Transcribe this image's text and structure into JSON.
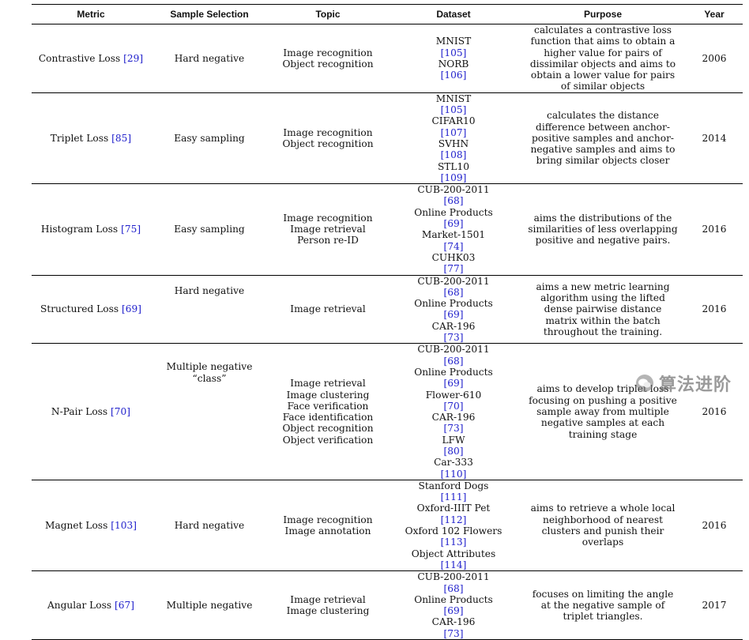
{
  "headers": [
    "Metric",
    "Sample Selection",
    "Topic",
    "Dataset",
    "Purpose",
    "Year"
  ],
  "rows": [
    {
      "metric": "Contrastive Loss",
      "metric_ref": "[29]",
      "selection": "Hard negative",
      "topics": [
        "Image recognition",
        "Object recognition"
      ],
      "datasets": [
        {
          "name": "MNIST",
          "ref": "[105]"
        },
        {
          "name": "NORB",
          "ref": "[106]"
        }
      ],
      "purpose": "calculates a contrastive loss function that aims to obtain a higher value for pairs of dissimilar objects and aims to obtain a lower value for pairs of similar objects",
      "year": "2006"
    },
    {
      "metric": "Triplet Loss",
      "metric_ref": "[85]",
      "selection": "Easy sampling",
      "topics": [
        "Image recognition",
        "Object recognition"
      ],
      "datasets": [
        {
          "name": "MNIST",
          "ref": "[105]"
        },
        {
          "name": "CIFAR10",
          "ref": "[107]"
        },
        {
          "name": "SVHN",
          "ref": "[108]"
        },
        {
          "name": "STL10",
          "ref": "[109]"
        }
      ],
      "purpose": "calculates the distance difference between anchor-positive samples and anchor-negative samples and aims to bring similar objects closer",
      "year": "2014"
    },
    {
      "metric": "Histogram Loss",
      "metric_ref": "[75]",
      "selection": "Easy sampling",
      "topics": [
        "Image recognition",
        "Image retrieval",
        "Person re-ID"
      ],
      "datasets": [
        {
          "name": "CUB-200-2011",
          "ref": "[68]"
        },
        {
          "name": "Online Products",
          "ref": "[69]"
        },
        {
          "name": "Market-1501",
          "ref": "[74]"
        },
        {
          "name": "CUHK03",
          "ref": "[77]"
        }
      ],
      "purpose": "aims the distributions of the similarities of less overlapping positive and negative pairs.",
      "year": "2016"
    },
    {
      "metric": "Structured Loss",
      "metric_ref": "[69]",
      "selection": "Hard negative",
      "topics": [
        "Image retrieval"
      ],
      "datasets": [
        {
          "name": "CUB-200-2011",
          "ref": "[68]"
        },
        {
          "name": "Online Products",
          "ref": "[69]"
        },
        {
          "name": "CAR-196",
          "ref": "[73]"
        }
      ],
      "purpose": "aims a new metric learning algorithm using the lifted dense pairwise distance matrix within the batch throughout the training.",
      "year": "2016"
    },
    {
      "metric": "N-Pair Loss",
      "metric_ref": "[70]",
      "selection": "Multiple negative “class”",
      "topics": [
        "Image retrieval",
        "Image clustering",
        "Face verification",
        "Face identification",
        "Object recognition",
        "Object verification"
      ],
      "datasets": [
        {
          "name": "CUB-200-2011",
          "ref": "[68]"
        },
        {
          "name": "Online Products",
          "ref": "[69]"
        },
        {
          "name": "Flower-610",
          "ref": "[70]"
        },
        {
          "name": "CAR-196",
          "ref": "[73]"
        },
        {
          "name": "LFW",
          "ref": "[80]"
        },
        {
          "name": "Car-333",
          "ref": "[110]"
        }
      ],
      "purpose": "aims to develop triplet loss focusing on pushing a positive sample away from multiple negative samples at each training stage",
      "year": "2016"
    },
    {
      "metric": "Magnet Loss",
      "metric_ref": "[103]",
      "selection": "Hard negative",
      "topics": [
        "Image recognition",
        "Image annotation"
      ],
      "datasets": [
        {
          "name": "Stanford Dogs",
          "ref": "[111]"
        },
        {
          "name": "Oxford-IIIT Pet",
          "ref": "[112]"
        },
        {
          "name": "Oxford 102 Flowers",
          "ref": "[113]"
        },
        {
          "name": "Object Attributes",
          "ref": "[114]"
        }
      ],
      "purpose": "aims to retrieve a whole local neighborhood of nearest clusters and punish their overlaps",
      "year": "2016"
    },
    {
      "metric": "Angular Loss",
      "metric_ref": "[67]",
      "selection": "Multiple negative",
      "topics": [
        "Image retrieval",
        "Image clustering"
      ],
      "datasets": [
        {
          "name": "CUB-200-2011",
          "ref": "[68]"
        },
        {
          "name": "Online Products",
          "ref": "[69]"
        },
        {
          "name": "CAR-196",
          "ref": "[73]"
        }
      ],
      "purpose": "focuses on limiting the angle at the negative sample of triplet triangles.",
      "year": "2017"
    }
  ],
  "watermark": "算法进阶"
}
